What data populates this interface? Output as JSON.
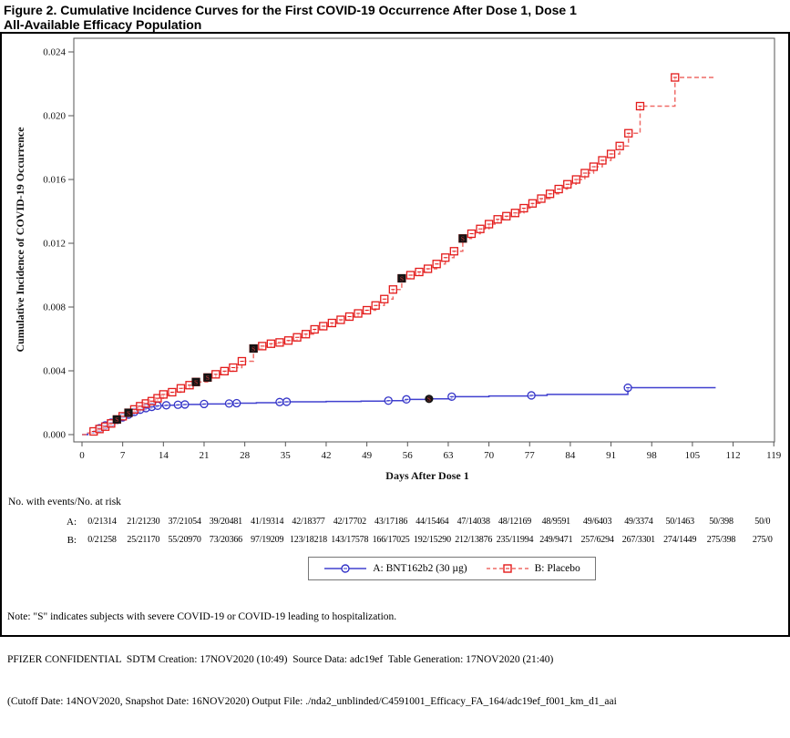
{
  "title": {
    "lines": [
      "Figure 2. Cumulative Incidence Curves for the First COVID-19 Occurrence After Dose 1, Dose 1",
      "All-Available Efficacy Population"
    ]
  },
  "chart_data": {
    "type": "line",
    "subtype": "kaplan-meier-cumulative-incidence",
    "xlabel": "Days After Dose 1",
    "ylabel": "Cumulative Incidence of COVID-19 Occurrence",
    "xlim": [
      0,
      119
    ],
    "ylim": [
      0.0,
      0.024
    ],
    "grid": "off",
    "legend_position": "bottom",
    "x_ticks": [
      "0",
      "7",
      "14",
      "21",
      "28",
      "35",
      "42",
      "49",
      "56",
      "63",
      "70",
      "77",
      "84",
      "91",
      "98",
      "105",
      "112",
      "119"
    ],
    "y_ticks": [
      "0.000",
      "0.004",
      "0.008",
      "0.012",
      "0.016",
      "0.020",
      "0.024"
    ],
    "severe_note_symbol": "S",
    "series": [
      {
        "name": "A: BNT162b2 (30 µg)",
        "group": "A",
        "line": "solid",
        "marker": "circle",
        "line_color": "#4040cf",
        "marker_color": "#3434c8",
        "points": [
          [
            0,
            0
          ],
          [
            1,
            0.0001
          ],
          [
            2,
            0.00022
          ],
          [
            3,
            0.0004
          ],
          [
            4,
            0.00058
          ],
          [
            5,
            0.00075
          ],
          [
            6,
            0.00092
          ],
          [
            7,
            0.00108
          ],
          [
            8,
            0.00125
          ],
          [
            9,
            0.00142
          ],
          [
            10,
            0.00156
          ],
          [
            11,
            0.00166
          ],
          [
            12,
            0.00174
          ],
          [
            13,
            0.00181
          ],
          [
            14.5,
            0.00184
          ],
          [
            16.5,
            0.00187
          ],
          [
            17.7,
            0.00189
          ],
          [
            21,
            0.00192
          ],
          [
            25.3,
            0.00195
          ],
          [
            26.6,
            0.00197
          ],
          [
            30,
            0.002
          ],
          [
            34,
            0.00204
          ],
          [
            35.2,
            0.00206
          ],
          [
            42,
            0.00208
          ],
          [
            48,
            0.0021
          ],
          [
            52.7,
            0.00213
          ],
          [
            55.8,
            0.00221
          ],
          [
            59.7,
            0.00224
          ],
          [
            63.6,
            0.00238
          ],
          [
            70,
            0.00242
          ],
          [
            77.3,
            0.00246
          ],
          [
            80,
            0.00252
          ],
          [
            93.9,
            0.00294
          ],
          [
            109,
            0.00294
          ]
        ],
        "markers": [
          [
            3,
            0.0004
          ],
          [
            4,
            0.00058
          ],
          [
            5,
            0.00075
          ],
          [
            6,
            0.00092
          ],
          [
            7,
            0.00108
          ],
          [
            8,
            0.00125
          ],
          [
            9,
            0.00142
          ],
          [
            10,
            0.00156
          ],
          [
            11,
            0.00166
          ],
          [
            12,
            0.00174
          ],
          [
            13,
            0.00181
          ],
          [
            14.5,
            0.00184
          ],
          [
            16.5,
            0.00187
          ],
          [
            17.7,
            0.00189
          ],
          [
            21,
            0.00192
          ],
          [
            25.3,
            0.00195
          ],
          [
            26.6,
            0.00197
          ],
          [
            34,
            0.00204
          ],
          [
            35.2,
            0.00206
          ],
          [
            52.7,
            0.00213
          ],
          [
            55.8,
            0.00221
          ],
          [
            63.6,
            0.00238
          ],
          [
            77.3,
            0.00246
          ],
          [
            93.9,
            0.00294
          ]
        ],
        "severe": [
          [
            59.7,
            0.00224
          ]
        ]
      },
      {
        "name": "B: Placebo",
        "group": "B",
        "line": "dashed",
        "marker": "square",
        "line_color": "#ef6b67",
        "marker_color": "#e31b1b",
        "points": [
          [
            0,
            0
          ],
          [
            1,
            0.0001
          ],
          [
            2,
            0.0002
          ],
          [
            3,
            0.00035
          ],
          [
            4,
            0.0005
          ],
          [
            5,
            0.0007
          ],
          [
            6,
            0.00095
          ],
          [
            7,
            0.00115
          ],
          [
            8,
            0.00137
          ],
          [
            9,
            0.00158
          ],
          [
            10,
            0.00178
          ],
          [
            11,
            0.00195
          ],
          [
            12,
            0.0021
          ],
          [
            13,
            0.00228
          ],
          [
            14,
            0.00252
          ],
          [
            15.5,
            0.00266
          ],
          [
            17,
            0.0029
          ],
          [
            18.5,
            0.0031
          ],
          [
            19.6,
            0.0033
          ],
          [
            21.6,
            0.00358
          ],
          [
            23,
            0.00378
          ],
          [
            24.5,
            0.00398
          ],
          [
            26,
            0.0042
          ],
          [
            27.5,
            0.0046
          ],
          [
            29.5,
            0.0054
          ],
          [
            31,
            0.00555
          ],
          [
            32.5,
            0.0057
          ],
          [
            34,
            0.00578
          ],
          [
            35.5,
            0.0059
          ],
          [
            37,
            0.0061
          ],
          [
            38.5,
            0.0063
          ],
          [
            40,
            0.0066
          ],
          [
            41.5,
            0.0068
          ],
          [
            43,
            0.007
          ],
          [
            44.5,
            0.0072
          ],
          [
            46,
            0.0074
          ],
          [
            47.5,
            0.0076
          ],
          [
            49,
            0.0078
          ],
          [
            50.5,
            0.0081
          ],
          [
            52,
            0.0085
          ],
          [
            53.5,
            0.0091
          ],
          [
            55,
            0.0098
          ],
          [
            56.5,
            0.01
          ],
          [
            58,
            0.0102
          ],
          [
            59.5,
            0.0104
          ],
          [
            61,
            0.0107
          ],
          [
            62.5,
            0.0111
          ],
          [
            64,
            0.0115
          ],
          [
            65.5,
            0.0123
          ],
          [
            67,
            0.0126
          ],
          [
            68.5,
            0.0129
          ],
          [
            70,
            0.0132
          ],
          [
            71.5,
            0.0135
          ],
          [
            73,
            0.0137
          ],
          [
            74.5,
            0.0139
          ],
          [
            76,
            0.0142
          ],
          [
            77.5,
            0.0145
          ],
          [
            79,
            0.0148
          ],
          [
            80.5,
            0.0151
          ],
          [
            82,
            0.0154
          ],
          [
            83.5,
            0.0157
          ],
          [
            85,
            0.016
          ],
          [
            86.5,
            0.0164
          ],
          [
            88,
            0.0168
          ],
          [
            89.5,
            0.0172
          ],
          [
            91,
            0.0176
          ],
          [
            92.5,
            0.0181
          ],
          [
            94,
            0.0189
          ],
          [
            96,
            0.0206
          ],
          [
            102,
            0.0224
          ],
          [
            109,
            0.0224
          ]
        ],
        "markers": [
          [
            2,
            0.0002
          ],
          [
            3,
            0.00035
          ],
          [
            4,
            0.0005
          ],
          [
            5,
            0.0007
          ],
          [
            6,
            0.00095
          ],
          [
            7,
            0.00115
          ],
          [
            8,
            0.00137
          ],
          [
            9,
            0.00158
          ],
          [
            10,
            0.00178
          ],
          [
            11,
            0.00195
          ],
          [
            12,
            0.0021
          ],
          [
            13,
            0.00228
          ],
          [
            14,
            0.00252
          ],
          [
            15.5,
            0.00266
          ],
          [
            17,
            0.0029
          ],
          [
            18.5,
            0.0031
          ],
          [
            19.6,
            0.0033
          ],
          [
            21.6,
            0.00358
          ],
          [
            23,
            0.00378
          ],
          [
            24.5,
            0.00398
          ],
          [
            26,
            0.0042
          ],
          [
            27.5,
            0.0046
          ],
          [
            29.5,
            0.0054
          ],
          [
            31,
            0.00555
          ],
          [
            32.5,
            0.0057
          ],
          [
            34,
            0.00578
          ],
          [
            35.5,
            0.0059
          ],
          [
            37,
            0.0061
          ],
          [
            38.5,
            0.0063
          ],
          [
            40,
            0.0066
          ],
          [
            41.5,
            0.0068
          ],
          [
            43,
            0.007
          ],
          [
            44.5,
            0.0072
          ],
          [
            46,
            0.0074
          ],
          [
            47.5,
            0.0076
          ],
          [
            49,
            0.0078
          ],
          [
            50.5,
            0.0081
          ],
          [
            52,
            0.0085
          ],
          [
            53.5,
            0.0091
          ],
          [
            55,
            0.0098
          ],
          [
            56.5,
            0.01
          ],
          [
            58,
            0.0102
          ],
          [
            59.5,
            0.0104
          ],
          [
            61,
            0.0107
          ],
          [
            62.5,
            0.0111
          ],
          [
            64,
            0.0115
          ],
          [
            65.5,
            0.0123
          ],
          [
            67,
            0.0126
          ],
          [
            68.5,
            0.0129
          ],
          [
            70,
            0.0132
          ],
          [
            71.5,
            0.0135
          ],
          [
            73,
            0.0137
          ],
          [
            74.5,
            0.0139
          ],
          [
            76,
            0.0142
          ],
          [
            77.5,
            0.0145
          ],
          [
            79,
            0.0148
          ],
          [
            80.5,
            0.0151
          ],
          [
            82,
            0.0154
          ],
          [
            83.5,
            0.0157
          ],
          [
            85,
            0.016
          ],
          [
            86.5,
            0.0164
          ],
          [
            88,
            0.0168
          ],
          [
            89.5,
            0.0172
          ],
          [
            91,
            0.0176
          ],
          [
            92.5,
            0.0181
          ],
          [
            94,
            0.0189
          ],
          [
            96,
            0.0206
          ],
          [
            102,
            0.0224
          ]
        ],
        "severe": [
          [
            6,
            0.00095
          ],
          [
            8,
            0.00137
          ],
          [
            19.6,
            0.0033
          ],
          [
            21.6,
            0.00358
          ],
          [
            29.5,
            0.0054
          ],
          [
            55,
            0.0098
          ],
          [
            65.5,
            0.0123
          ]
        ]
      }
    ]
  },
  "risk_table": {
    "header": "No. with events/No. at risk",
    "rows": [
      {
        "label": "A:",
        "values": [
          "0/21314",
          "21/21230",
          "37/21054",
          "39/20481",
          "41/19314",
          "42/18377",
          "42/17702",
          "43/17186",
          "44/15464",
          "47/14038",
          "48/12169",
          "48/9591",
          "49/6403",
          "49/3374",
          "50/1463",
          "50/398",
          "50/0"
        ]
      },
      {
        "label": "B:",
        "values": [
          "0/21258",
          "25/21170",
          "55/20970",
          "73/20366",
          "97/19209",
          "123/18218",
          "143/17578",
          "166/17025",
          "192/15290",
          "212/13876",
          "235/11994",
          "249/9471",
          "257/6294",
          "267/3301",
          "274/1449",
          "275/398",
          "275/0"
        ]
      }
    ]
  },
  "footer": {
    "note": "Note: \"S\" indicates subjects with severe COVID-19 or COVID-19 leading to hospitalization.",
    "confidential": "PFIZER CONFIDENTIAL  SDTM Creation: 17NOV2020 (10:49)  Source Data: adc19ef  Table Generation: 17NOV2020 (21:40)",
    "cutoff": "(Cutoff Date: 14NOV2020, Snapshot Date: 16NOV2020) Output File: ./nda2_unblinded/C4591001_Efficacy_FA_164/adc19ef_f001_km_d1_aai"
  }
}
